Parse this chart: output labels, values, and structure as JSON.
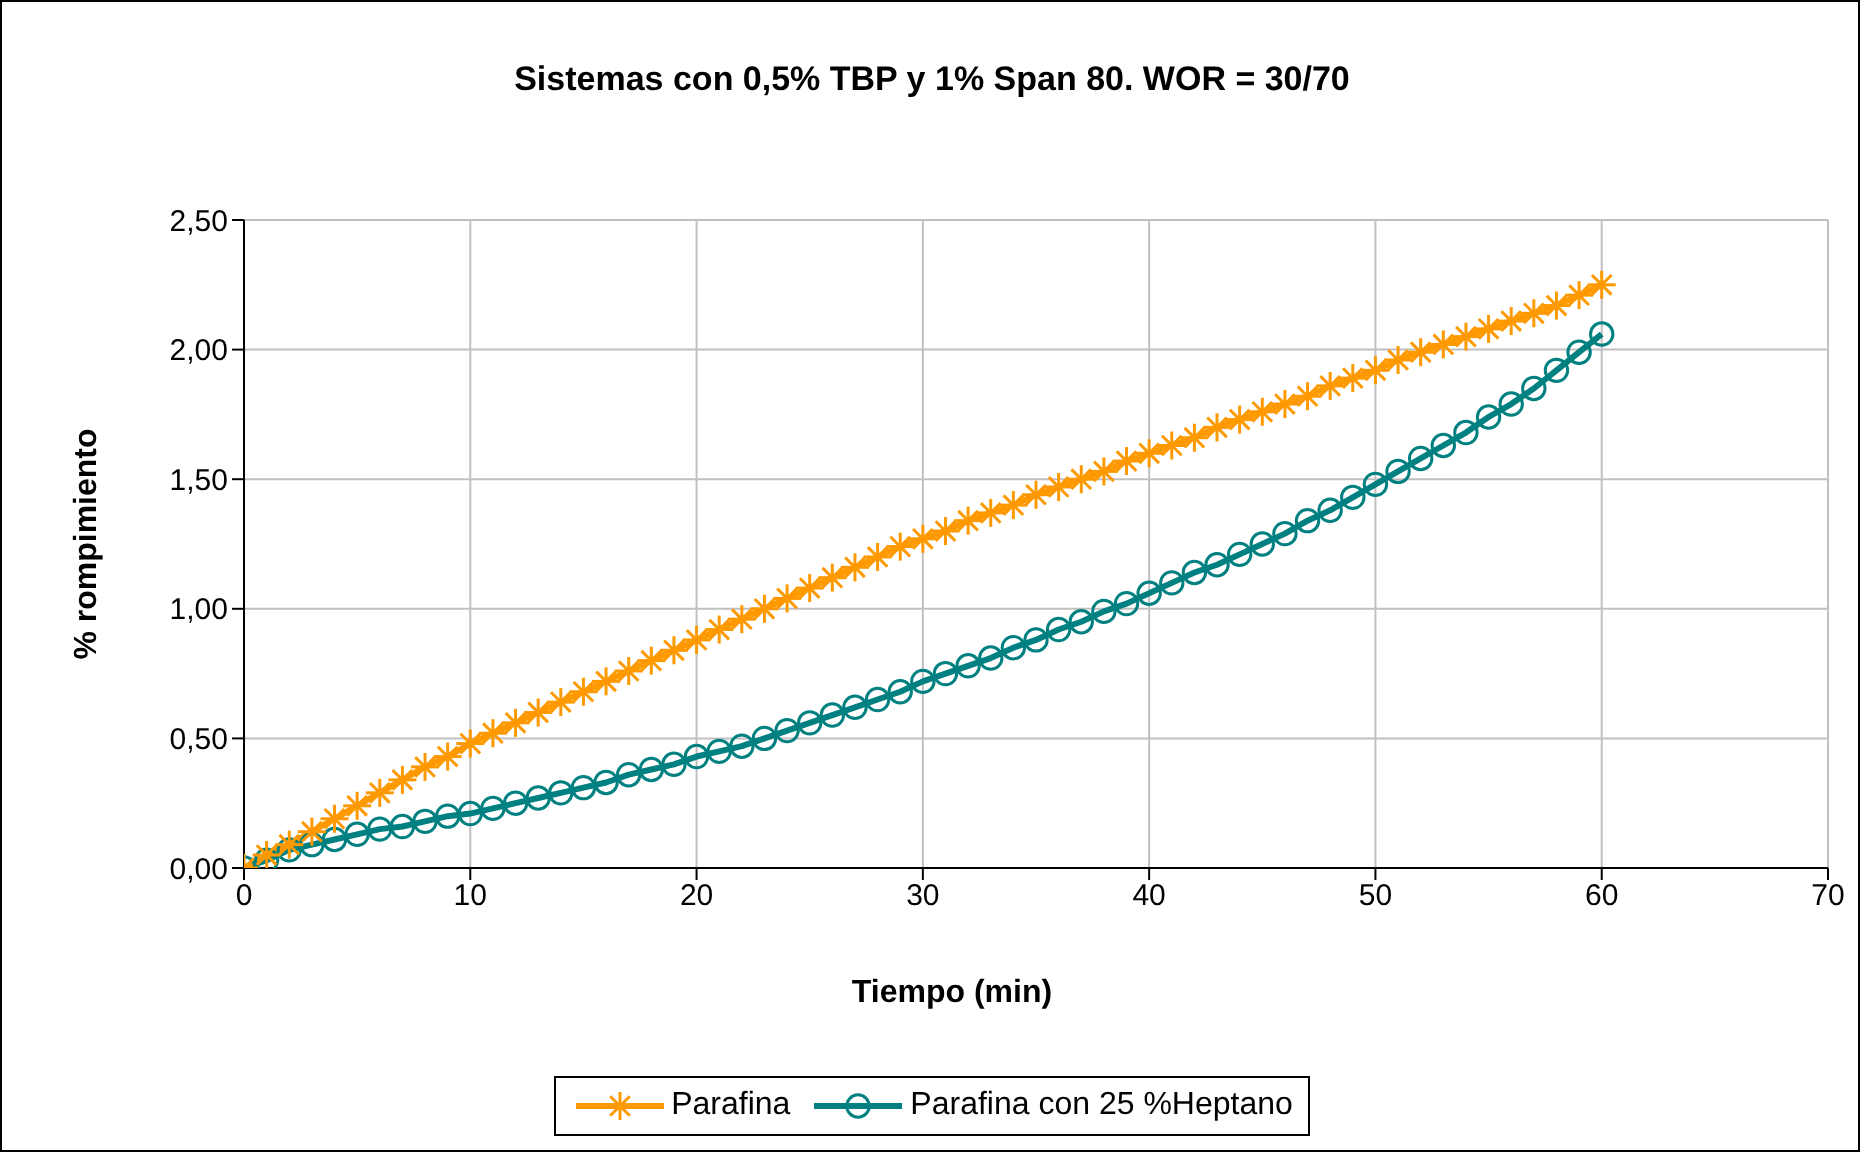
{
  "chart_data": {
    "type": "line",
    "title": "Sistemas con 0,5% TBP y 1% Span 80. WOR = 30/70",
    "xlabel": "Tiempo (min)",
    "ylabel": "% rompimiento",
    "x": [
      0,
      1,
      2,
      3,
      4,
      5,
      6,
      7,
      8,
      9,
      10,
      11,
      12,
      13,
      14,
      15,
      16,
      17,
      18,
      19,
      20,
      21,
      22,
      23,
      24,
      25,
      26,
      27,
      28,
      29,
      30,
      31,
      32,
      33,
      34,
      35,
      36,
      37,
      38,
      39,
      40,
      41,
      42,
      43,
      44,
      45,
      46,
      47,
      48,
      49,
      50,
      51,
      52,
      53,
      54,
      55,
      56,
      57,
      58,
      59,
      60
    ],
    "xlim": [
      0,
      70
    ],
    "xticks": [
      0,
      10,
      20,
      30,
      40,
      50,
      60,
      70
    ],
    "ylim": [
      0,
      2.5
    ],
    "yticks": [
      {
        "value": 0,
        "label": "0,00"
      },
      {
        "value": 0.5,
        "label": "0,50"
      },
      {
        "value": 1,
        "label": "1,00"
      },
      {
        "value": 1.5,
        "label": "1,50"
      },
      {
        "value": 2,
        "label": "2,00"
      },
      {
        "value": 2.5,
        "label": "2,50"
      }
    ],
    "grid": true,
    "legend": "bottom",
    "line_style": "solid",
    "series": [
      {
        "name": "Parafina",
        "color": "#ff9900",
        "marker": "cross",
        "values": [
          0,
          0.05,
          0.09,
          0.14,
          0.19,
          0.24,
          0.29,
          0.34,
          0.39,
          0.43,
          0.48,
          0.52,
          0.56,
          0.6,
          0.64,
          0.68,
          0.72,
          0.76,
          0.8,
          0.84,
          0.88,
          0.92,
          0.96,
          1.0,
          1.04,
          1.08,
          1.12,
          1.16,
          1.2,
          1.24,
          1.27,
          1.3,
          1.34,
          1.37,
          1.4,
          1.44,
          1.47,
          1.5,
          1.53,
          1.57,
          1.6,
          1.63,
          1.66,
          1.7,
          1.73,
          1.76,
          1.79,
          1.82,
          1.86,
          1.89,
          1.92,
          1.96,
          1.99,
          2.02,
          2.05,
          2.08,
          2.11,
          2.14,
          2.17,
          2.21,
          2.25
        ]
      },
      {
        "name": "Parafina con 25 %Heptano",
        "color": "#008080",
        "marker": "circle",
        "values": [
          0,
          0.03,
          0.07,
          0.09,
          0.11,
          0.13,
          0.15,
          0.16,
          0.18,
          0.2,
          0.21,
          0.23,
          0.25,
          0.27,
          0.29,
          0.31,
          0.33,
          0.36,
          0.38,
          0.4,
          0.43,
          0.45,
          0.47,
          0.5,
          0.53,
          0.56,
          0.59,
          0.62,
          0.65,
          0.68,
          0.72,
          0.75,
          0.78,
          0.81,
          0.85,
          0.88,
          0.92,
          0.95,
          0.99,
          1.02,
          1.06,
          1.1,
          1.14,
          1.17,
          1.21,
          1.25,
          1.29,
          1.34,
          1.38,
          1.43,
          1.48,
          1.53,
          1.58,
          1.63,
          1.68,
          1.74,
          1.79,
          1.85,
          1.92,
          1.99,
          2.06
        ]
      }
    ]
  }
}
